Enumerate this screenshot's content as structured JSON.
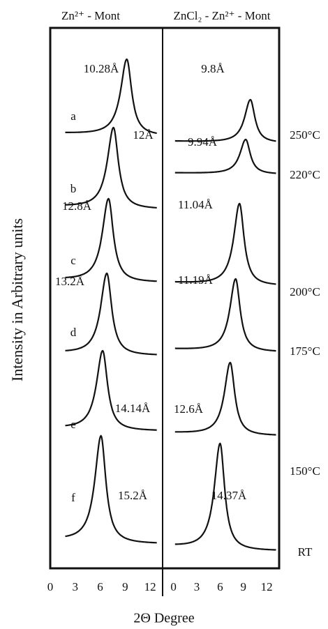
{
  "y_label": "Intensity in Arbitrary units",
  "x_label": "2Θ Degree",
  "temperatures": [
    "250°C",
    "220°C",
    "200°C",
    "175°C",
    "150°C",
    "RT"
  ],
  "chart_data": [
    {
      "type": "line",
      "title": "Zn²⁺ - Mont",
      "xlim": [
        0,
        13.5
      ],
      "xticks": [
        0,
        3,
        6,
        9,
        12
      ],
      "series": [
        {
          "name": "a",
          "peak": 9.2,
          "label": "10.28Å"
        },
        {
          "name": "b",
          "peak": 7.6,
          "label": "12Å"
        },
        {
          "name": "c",
          "peak": 7.0,
          "label": "12.8Å"
        },
        {
          "name": "d",
          "peak": 6.8,
          "label": "13.2Å"
        },
        {
          "name": "e",
          "peak": 6.3,
          "label": "14.14Å"
        },
        {
          "name": "f",
          "peak": 6.1,
          "label": "15.2Å"
        }
      ]
    },
    {
      "type": "line",
      "title": "ZnCl₂ - Zn²⁺ - Mont",
      "xlim": [
        -1.4,
        13.6
      ],
      "xticks": [
        0,
        3,
        6,
        9,
        12
      ],
      "series": [
        {
          "peak": 9.9,
          "label": "9.8Å"
        },
        {
          "peak": 9.3,
          "label": "9.94Å"
        },
        {
          "peak": 8.5,
          "label": "11.04Å"
        },
        {
          "peak": 8.0,
          "label": "11.19Å"
        },
        {
          "peak": 7.3,
          "label": "12.6Å"
        },
        {
          "peak": 6.0,
          "label": "14.37Å"
        }
      ]
    }
  ]
}
